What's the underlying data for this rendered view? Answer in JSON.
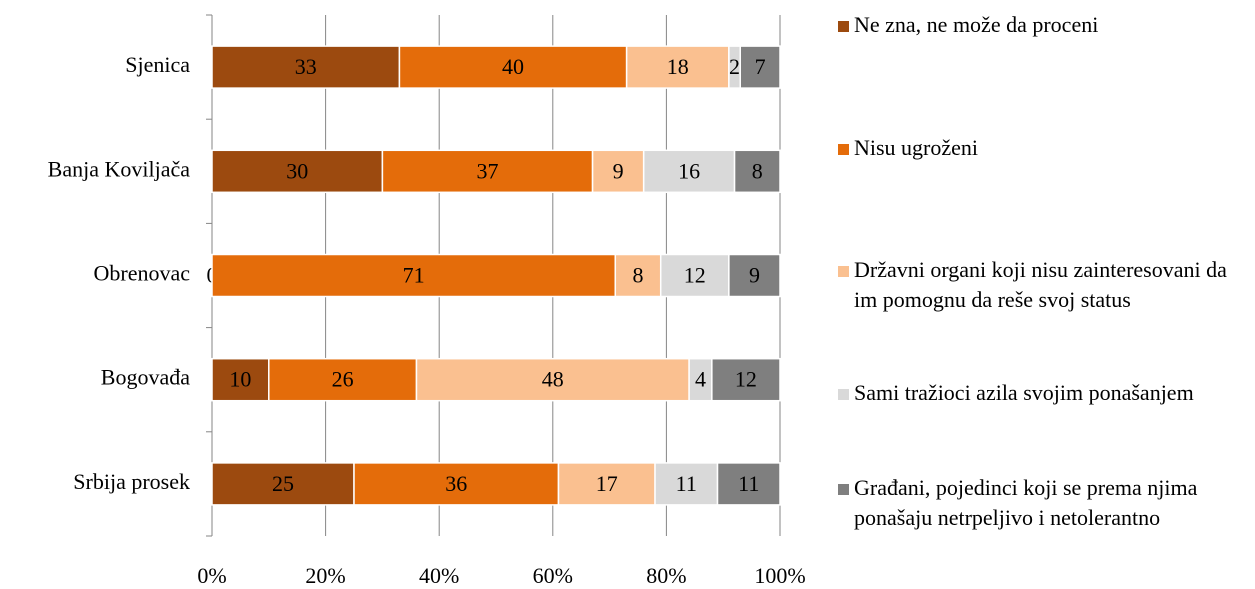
{
  "chart_data": {
    "type": "bar",
    "orientation": "horizontal",
    "stacked": true,
    "categories": [
      "Sjenica",
      "Banja Koviljača",
      "Obrenovac",
      "Bogovađa",
      "Srbija prosek"
    ],
    "series": [
      {
        "name": "Ne zna, ne može da proceni",
        "color": "#9c4a0f",
        "values": [
          33,
          30,
          0,
          10,
          25
        ]
      },
      {
        "name": "Nisu ugroženi",
        "color": "#e46c0a",
        "values": [
          40,
          37,
          71,
          26,
          36
        ]
      },
      {
        "name": "Državni organi koji nisu zainteresovani da im pomognu da reše svoj status",
        "color": "#fac090",
        "values": [
          18,
          9,
          8,
          48,
          17
        ]
      },
      {
        "name": "Sami tražioci azila svojim ponašanjem",
        "color": "#d9d9d9",
        "values": [
          2,
          16,
          12,
          4,
          11
        ]
      },
      {
        "name": "Građani, pojedinci koji se prema njima ponašaju netrpeljivo i netolerantno",
        "color": "#7f7f7f",
        "values": [
          7,
          8,
          9,
          12,
          11
        ]
      }
    ],
    "xlim": [
      0,
      100
    ],
    "xticks": [
      {
        "value": 0,
        "label": "0%"
      },
      {
        "value": 20,
        "label": "20%"
      },
      {
        "value": 40,
        "label": "40%"
      },
      {
        "value": 60,
        "label": "60%"
      },
      {
        "value": 80,
        "label": "80%"
      },
      {
        "value": 100,
        "label": "100%"
      }
    ],
    "grid": true,
    "legend": "right"
  }
}
